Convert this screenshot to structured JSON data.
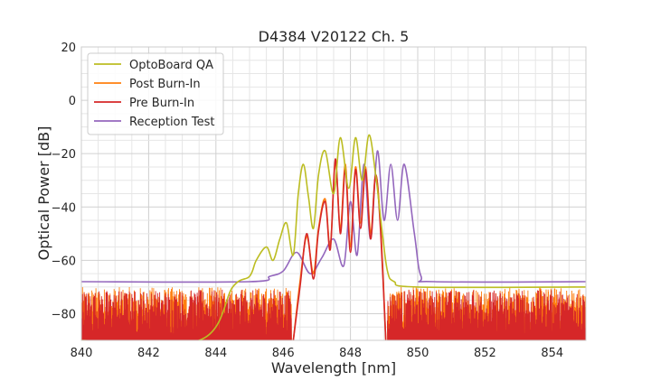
{
  "chart_data": {
    "type": "line",
    "title": "D4384 V20122 Ch. 5",
    "xlabel": "Wavelength [nm]",
    "ylabel": "Optical Power [dB]",
    "xlim": [
      840,
      855
    ],
    "ylim": [
      -90,
      20
    ],
    "xticks": [
      840,
      842,
      844,
      846,
      848,
      850,
      852,
      854
    ],
    "yticks": [
      -80,
      -60,
      -40,
      -20,
      0,
      20
    ],
    "ytick_labels": [
      "−80",
      "−60",
      "−40",
      "−20",
      "0",
      "20"
    ],
    "grid": true,
    "legend_position": "top-left",
    "series": [
      {
        "name": "OptoBoard QA",
        "color": "#bcbd22",
        "x": [
          840,
          843.5,
          844.5,
          845.0,
          845.2,
          845.5,
          845.7,
          845.9,
          846.1,
          846.3,
          846.45,
          846.6,
          846.75,
          846.9,
          847.05,
          847.25,
          847.5,
          847.7,
          847.95,
          848.15,
          848.35,
          848.55,
          848.75,
          848.95,
          849.1,
          849.3,
          850.0,
          855
        ],
        "y": [
          -90,
          -90,
          -70,
          -66,
          -60,
          -55,
          -60,
          -52,
          -46,
          -58,
          -35,
          -24,
          -36,
          -48,
          -28,
          -19,
          -35,
          -14,
          -33,
          -14,
          -30,
          -13,
          -28,
          -50,
          -64,
          -68,
          -70,
          -70
        ]
      },
      {
        "name": "Post Burn-In",
        "color": "#ff7f0e",
        "x": [
          846.3,
          846.5,
          846.7,
          846.9,
          847.05,
          847.25,
          847.4,
          847.55,
          847.7,
          847.85,
          848.0,
          848.15,
          848.3,
          848.45,
          848.6,
          848.75,
          848.9,
          849.05
        ],
        "y": [
          -90,
          -68,
          -51,
          -65,
          -48,
          -37,
          -55,
          -23,
          -48,
          -24,
          -55,
          -25,
          -46,
          -25,
          -50,
          -28,
          -48,
          -90
        ]
      },
      {
        "name": "Pre Burn-In",
        "color": "#d62728",
        "x": [
          846.3,
          846.5,
          846.7,
          846.9,
          847.05,
          847.25,
          847.4,
          847.55,
          847.7,
          847.85,
          848.0,
          848.15,
          848.3,
          848.45,
          848.6,
          848.75,
          848.9,
          849.05
        ],
        "y": [
          -90,
          -70,
          -50,
          -67,
          -49,
          -38,
          -56,
          -22,
          -50,
          -26,
          -57,
          -26,
          -48,
          -26,
          -52,
          -28,
          -50,
          -90
        ]
      },
      {
        "name": "Reception Test",
        "color": "#9467bd",
        "x": [
          840,
          845.0,
          845.6,
          846.0,
          846.4,
          846.8,
          847.15,
          847.5,
          847.8,
          848.0,
          848.2,
          848.4,
          848.6,
          848.8,
          849.0,
          849.2,
          849.4,
          849.6,
          849.9,
          850.1,
          850.5,
          855
        ],
        "y": [
          -68,
          -68,
          -66,
          -64,
          -57,
          -65,
          -59,
          -52,
          -62,
          -38,
          -58,
          -24,
          -52,
          -19,
          -45,
          -24,
          -45,
          -24,
          -50,
          -66,
          -68,
          -68
        ]
      }
    ]
  }
}
